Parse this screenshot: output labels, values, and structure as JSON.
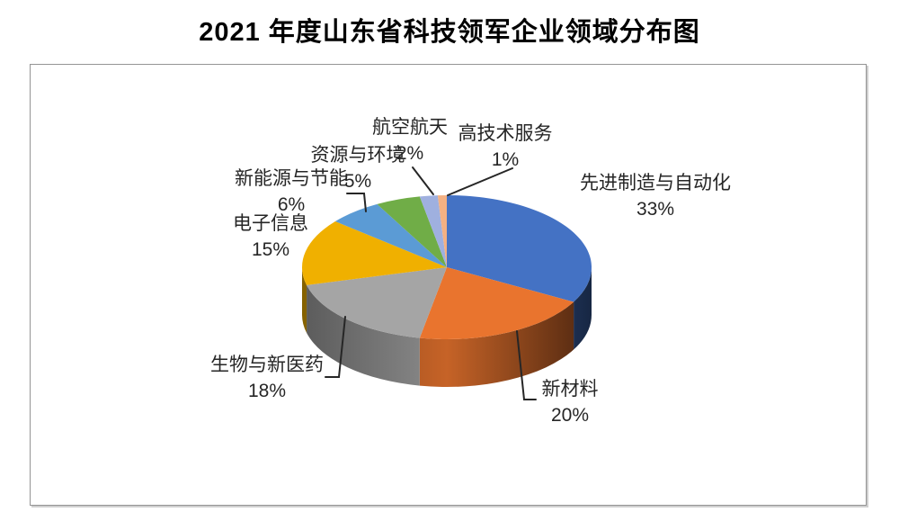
{
  "page": {
    "title": "2021 年度山东省科技领军企业领域分布图"
  },
  "chart_data": {
    "type": "pie",
    "style": "3d",
    "title": "2021 年度山东省科技领军企业领域分布图",
    "direction": "clockwise",
    "start_angle_deg": 0,
    "legend": "none",
    "plot_border_color": "#949494",
    "label_color": "#262626",
    "leader_line_color": "#262626",
    "slices": [
      {
        "label": "先进制造与自动化",
        "pct": 33,
        "pct_label": "33%",
        "color": "#4472C4"
      },
      {
        "label": "新材料",
        "pct": 20,
        "pct_label": "20%",
        "color": "#E9742E"
      },
      {
        "label": "生物与新医药",
        "pct": 18,
        "pct_label": "18%",
        "color": "#A5A5A5"
      },
      {
        "label": "电子信息",
        "pct": 15,
        "pct_label": "15%",
        "color": "#F0B000"
      },
      {
        "label": "新能源与节能",
        "pct": 6,
        "pct_label": "6%",
        "color": "#5B9BD5"
      },
      {
        "label": "资源与环境",
        "pct": 5,
        "pct_label": "5%",
        "color": "#70AD47"
      },
      {
        "label": "航空航天",
        "pct": 2,
        "pct_label": "2%",
        "color": "#9FB0DF"
      },
      {
        "label": "高技术服务",
        "pct": 1,
        "pct_label": "1%",
        "color": "#F4B183"
      }
    ]
  }
}
